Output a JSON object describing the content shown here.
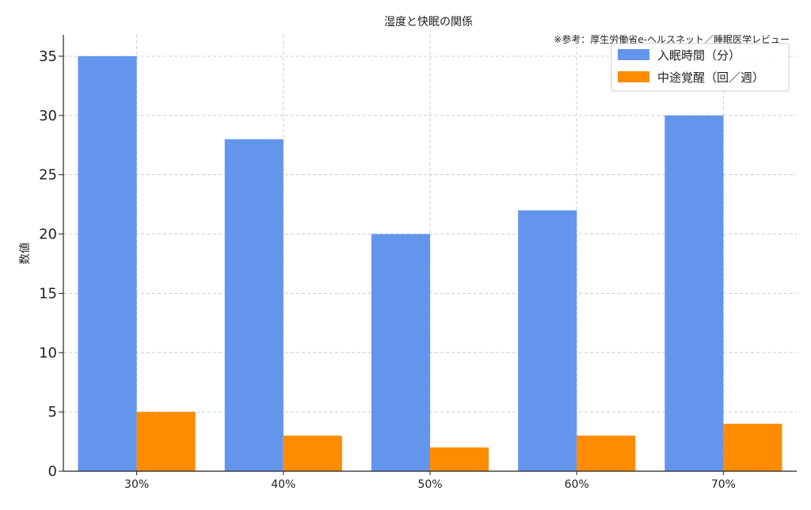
{
  "chart_data": {
    "type": "bar",
    "title": "湿度と快眠の関係",
    "note": "※参考：厚生労働省e-ヘルスネット／睡眠医学レビュー",
    "xlabel": "",
    "ylabel": "数値",
    "categories": [
      "30%",
      "40%",
      "50%",
      "60%",
      "70%"
    ],
    "series": [
      {
        "name": "入眠時間（分）",
        "color": "#6495ED",
        "values": [
          35,
          28,
          20,
          22,
          30
        ]
      },
      {
        "name": "中途覚醒（回／週）",
        "color": "#FF8C00",
        "values": [
          5,
          3,
          2,
          3,
          4
        ]
      }
    ],
    "ylim": [
      0,
      36.8
    ],
    "yticks": [
      0,
      5,
      10,
      15,
      20,
      25,
      30,
      35
    ],
    "grid": true,
    "legend_position": "top-right"
  }
}
